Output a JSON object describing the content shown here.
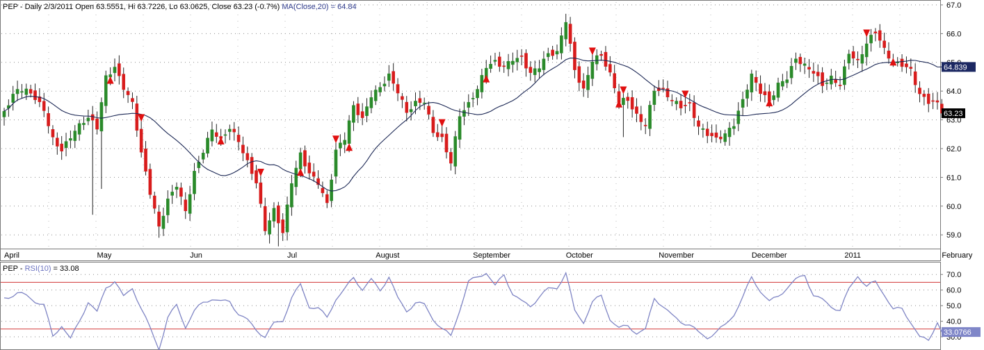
{
  "header": {
    "symbol": "PEP",
    "price_text": " - Daily 2/3/2011 Open 63.5551, Hi 63.7226, Lo 63.0625, Close 63.23 (-0.7%) ",
    "ma_text": "MA(Close,20) = 64.84"
  },
  "rsi_header": {
    "symbol": "PEP",
    "separator": " - ",
    "indicator": "RSI(10)",
    "value_text": " = 33.08"
  },
  "colors": {
    "up": "#2a8a2a",
    "down": "#d81c1c",
    "ma_line": "#1c2855",
    "rsi_line": "#7e84c4",
    "rsi_band": "#d33c3c",
    "signal": "#e01010",
    "ma_tag_bg": "#1c2862",
    "rsi_tag_bg": "#7f86c8",
    "close_tag_bg": "#000000"
  },
  "chart_data": [
    {
      "type": "candlestick",
      "ylim": [
        58.5,
        67.2
      ],
      "y_ticks": [
        59.0,
        60.0,
        61.0,
        62.0,
        63.0,
        64.0,
        65.0,
        66.0,
        67.0
      ],
      "y_tick_labels": [
        "59.0",
        "60.0",
        "61.0",
        "62.0",
        "63.0",
        "64.0",
        "65.0",
        "66.0",
        "67.0"
      ],
      "x_labels": [
        "April",
        "May",
        "Jun",
        "Jul",
        "August",
        "September",
        "October",
        "November",
        "December",
        "2011",
        "February"
      ],
      "x_label_index": [
        0,
        21,
        42,
        64,
        84,
        106,
        127,
        148,
        169,
        190,
        212
      ],
      "last": {
        "date": "2/3/2011",
        "open": 63.5551,
        "high": 63.7226,
        "low": 63.0625,
        "close": 63.23,
        "change_pct": -0.7
      },
      "ma": {
        "label": "MA(Close,20)",
        "value": 64.84,
        "tag": "64.839"
      },
      "close_tag": "63.23",
      "anchors": [
        [
          0,
          63.3
        ],
        [
          3,
          64.0
        ],
        [
          6,
          63.9
        ],
        [
          9,
          63.4
        ],
        [
          11,
          62.4
        ],
        [
          13,
          62.0
        ],
        [
          16,
          62.6
        ],
        [
          19,
          63.0
        ],
        [
          21,
          62.7
        ],
        [
          23,
          64.5
        ],
        [
          25,
          64.9
        ],
        [
          27,
          64.2
        ],
        [
          29,
          63.6
        ],
        [
          31,
          61.8
        ],
        [
          33,
          60.4
        ],
        [
          35,
          59.2
        ],
        [
          37,
          60.2
        ],
        [
          39,
          60.8
        ],
        [
          41,
          59.9
        ],
        [
          43,
          61.2
        ],
        [
          45,
          61.9
        ],
        [
          47,
          62.6
        ],
        [
          49,
          62.2
        ],
        [
          51,
          62.7
        ],
        [
          53,
          62.3
        ],
        [
          55,
          61.6
        ],
        [
          57,
          60.9
        ],
        [
          59,
          59.2
        ],
        [
          61,
          59.8
        ],
        [
          63,
          59.0
        ],
        [
          65,
          60.8
        ],
        [
          67,
          61.8
        ],
        [
          69,
          61.2
        ],
        [
          71,
          60.9
        ],
        [
          73,
          60.1
        ],
        [
          75,
          61.9
        ],
        [
          77,
          62.3
        ],
        [
          79,
          63.4
        ],
        [
          81,
          63.0
        ],
        [
          83,
          63.9
        ],
        [
          85,
          64.2
        ],
        [
          87,
          64.6
        ],
        [
          89,
          64.0
        ],
        [
          91,
          63.2
        ],
        [
          93,
          63.5
        ],
        [
          95,
          63.6
        ],
        [
          97,
          62.6
        ],
        [
          99,
          62.4
        ],
        [
          101,
          61.6
        ],
        [
          103,
          63.2
        ],
        [
          105,
          63.5
        ],
        [
          107,
          64.0
        ],
        [
          109,
          64.8
        ],
        [
          111,
          65.0
        ],
        [
          113,
          64.9
        ],
        [
          115,
          65.2
        ],
        [
          117,
          65.2
        ],
        [
          119,
          64.6
        ],
        [
          121,
          64.8
        ],
        [
          123,
          65.2
        ],
        [
          125,
          65.3
        ],
        [
          127,
          66.5
        ],
        [
          129,
          64.8
        ],
        [
          131,
          64.1
        ],
        [
          133,
          65.1
        ],
        [
          135,
          65.2
        ],
        [
          137,
          64.5
        ],
        [
          139,
          63.6
        ],
        [
          141,
          63.7
        ],
        [
          143,
          63.2
        ],
        [
          145,
          62.9
        ],
        [
          147,
          64.1
        ],
        [
          149,
          64.0
        ],
        [
          151,
          63.6
        ],
        [
          153,
          63.4
        ],
        [
          155,
          63.5
        ],
        [
          157,
          62.8
        ],
        [
          159,
          62.6
        ],
        [
          161,
          62.4
        ],
        [
          163,
          62.5
        ],
        [
          165,
          62.8
        ],
        [
          167,
          63.6
        ],
        [
          169,
          64.5
        ],
        [
          171,
          64.0
        ],
        [
          173,
          63.7
        ],
        [
          175,
          64.3
        ],
        [
          177,
          64.5
        ],
        [
          179,
          65.1
        ],
        [
          181,
          64.8
        ],
        [
          183,
          64.6
        ],
        [
          185,
          64.2
        ],
        [
          187,
          64.5
        ],
        [
          189,
          64.3
        ],
        [
          191,
          65.4
        ],
        [
          193,
          65.0
        ],
        [
          195,
          65.6
        ],
        [
          197,
          66.0
        ],
        [
          199,
          65.4
        ],
        [
          201,
          65.0
        ],
        [
          203,
          65.0
        ],
        [
          205,
          64.8
        ],
        [
          207,
          63.9
        ],
        [
          209,
          63.6
        ],
        [
          211,
          63.5
        ],
        [
          212,
          63.23
        ]
      ],
      "signals": [
        {
          "i": 24,
          "dir": "up"
        },
        {
          "i": 31,
          "dir": "down"
        },
        {
          "i": 49,
          "dir": "up"
        },
        {
          "i": 58,
          "dir": "down"
        },
        {
          "i": 67,
          "dir": "up"
        },
        {
          "i": 75,
          "dir": "down"
        },
        {
          "i": 78,
          "dir": "up"
        },
        {
          "i": 99,
          "dir": "down"
        },
        {
          "i": 109,
          "dir": "up"
        },
        {
          "i": 133,
          "dir": "down"
        },
        {
          "i": 139,
          "dir": "up"
        },
        {
          "i": 140,
          "dir": "down"
        },
        {
          "i": 154,
          "dir": "down"
        },
        {
          "i": 173,
          "dir": "up"
        },
        {
          "i": 195,
          "dir": "down"
        },
        {
          "i": 201,
          "dir": "up"
        }
      ]
    },
    {
      "type": "line",
      "name": "RSI(10)",
      "ylim": [
        22,
        75
      ],
      "y_ticks": [
        30.0,
        40.0,
        50.0,
        60.0,
        70.0
      ],
      "y_tick_labels": [
        "30.0",
        "40.0",
        "50.0",
        "60.0",
        "70.0"
      ],
      "overbought": 65,
      "oversold": 35,
      "value": 33.08,
      "tag": "33.0766",
      "anchors": [
        [
          0,
          55
        ],
        [
          3,
          58
        ],
        [
          6,
          55
        ],
        [
          9,
          50
        ],
        [
          11,
          30
        ],
        [
          13,
          38
        ],
        [
          15,
          28
        ],
        [
          17,
          40
        ],
        [
          19,
          53
        ],
        [
          21,
          45
        ],
        [
          23,
          62
        ],
        [
          25,
          66
        ],
        [
          27,
          55
        ],
        [
          29,
          62
        ],
        [
          31,
          48
        ],
        [
          33,
          35
        ],
        [
          35,
          23
        ],
        [
          37,
          42
        ],
        [
          39,
          50
        ],
        [
          41,
          37
        ],
        [
          43,
          46
        ],
        [
          45,
          52
        ],
        [
          47,
          55
        ],
        [
          49,
          52
        ],
        [
          51,
          53
        ],
        [
          53,
          45
        ],
        [
          55,
          40
        ],
        [
          57,
          35
        ],
        [
          59,
          30
        ],
        [
          61,
          38
        ],
        [
          63,
          41
        ],
        [
          65,
          55
        ],
        [
          67,
          63
        ],
        [
          69,
          50
        ],
        [
          71,
          48
        ],
        [
          73,
          42
        ],
        [
          75,
          55
        ],
        [
          77,
          60
        ],
        [
          79,
          68
        ],
        [
          81,
          61
        ],
        [
          83,
          66
        ],
        [
          85,
          60
        ],
        [
          87,
          69
        ],
        [
          89,
          54
        ],
        [
          91,
          47
        ],
        [
          93,
          52
        ],
        [
          95,
          50
        ],
        [
          97,
          42
        ],
        [
          99,
          35
        ],
        [
          101,
          30
        ],
        [
          103,
          48
        ],
        [
          105,
          65
        ],
        [
          107,
          68
        ],
        [
          109,
          72
        ],
        [
          111,
          62
        ],
        [
          113,
          70
        ],
        [
          115,
          58
        ],
        [
          117,
          52
        ],
        [
          119,
          50
        ],
        [
          121,
          56
        ],
        [
          123,
          60
        ],
        [
          125,
          62
        ],
        [
          127,
          71
        ],
        [
          129,
          46
        ],
        [
          131,
          40
        ],
        [
          133,
          52
        ],
        [
          135,
          56
        ],
        [
          137,
          42
        ],
        [
          139,
          35
        ],
        [
          141,
          37
        ],
        [
          143,
          33
        ],
        [
          145,
          34
        ],
        [
          147,
          55
        ],
        [
          149,
          50
        ],
        [
          151,
          43
        ],
        [
          153,
          40
        ],
        [
          155,
          38
        ],
        [
          157,
          32
        ],
        [
          159,
          30
        ],
        [
          161,
          33
        ],
        [
          163,
          37
        ],
        [
          165,
          45
        ],
        [
          167,
          55
        ],
        [
          169,
          68
        ],
        [
          171,
          60
        ],
        [
          173,
          52
        ],
        [
          175,
          56
        ],
        [
          177,
          62
        ],
        [
          179,
          66
        ],
        [
          181,
          70
        ],
        [
          183,
          57
        ],
        [
          185,
          53
        ],
        [
          187,
          50
        ],
        [
          189,
          47
        ],
        [
          191,
          60
        ],
        [
          193,
          70
        ],
        [
          195,
          62
        ],
        [
          197,
          65
        ],
        [
          199,
          58
        ],
        [
          201,
          47
        ],
        [
          203,
          48
        ],
        [
          205,
          40
        ],
        [
          207,
          29
        ],
        [
          209,
          28
        ],
        [
          211,
          40
        ],
        [
          212,
          33.08
        ]
      ]
    }
  ]
}
